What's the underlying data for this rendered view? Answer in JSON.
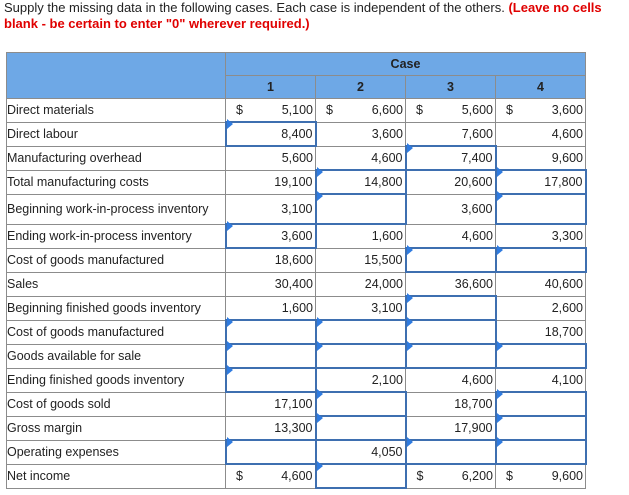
{
  "instructions": {
    "text": "Supply the missing data in the following cases. Each case is independent of the others.",
    "warning": "(Leave no cells blank - be certain to enter \"0\" wherever required.)"
  },
  "table": {
    "group_header": "Case",
    "columns": [
      "1",
      "2",
      "3",
      "4"
    ],
    "rows": [
      {
        "label": "Direct materials",
        "cells": [
          {
            "value": "5,100",
            "dollar": "$",
            "input": false
          },
          {
            "value": "6,600",
            "dollar": "$",
            "input": false
          },
          {
            "value": "5,600",
            "dollar": "$",
            "input": false
          },
          {
            "value": "3,600",
            "dollar": "$",
            "input": false
          }
        ]
      },
      {
        "label": "Direct labour",
        "cells": [
          {
            "value": "8,400",
            "input": true
          },
          {
            "value": "3,600",
            "input": false
          },
          {
            "value": "7,600",
            "input": false
          },
          {
            "value": "4,600",
            "input": false
          }
        ]
      },
      {
        "label": "Manufacturing overhead",
        "cells": [
          {
            "value": "5,600",
            "input": false
          },
          {
            "value": "4,600",
            "input": false
          },
          {
            "value": "7,400",
            "input": true
          },
          {
            "value": "9,600",
            "input": false
          }
        ]
      },
      {
        "label": "Total manufacturing costs",
        "cells": [
          {
            "value": "19,100",
            "input": false
          },
          {
            "value": "14,800",
            "input": true
          },
          {
            "value": "20,600",
            "input": false
          },
          {
            "value": "17,800",
            "input": true
          }
        ]
      },
      {
        "label": "Beginning work-in-process inventory",
        "tall": true,
        "cells": [
          {
            "value": "3,100",
            "input": false
          },
          {
            "value": "",
            "input": true
          },
          {
            "value": "3,600",
            "input": false
          },
          {
            "value": "",
            "input": true
          }
        ]
      },
      {
        "label": "Ending work-in-process inventory",
        "cells": [
          {
            "value": "3,600",
            "input": true
          },
          {
            "value": "1,600",
            "input": false
          },
          {
            "value": "4,600",
            "input": false
          },
          {
            "value": "3,300",
            "input": false
          }
        ]
      },
      {
        "label": "Cost of goods manufactured",
        "cells": [
          {
            "value": "18,600",
            "input": false
          },
          {
            "value": "15,500",
            "input": false
          },
          {
            "value": "",
            "input": true
          },
          {
            "value": "",
            "input": true
          }
        ]
      },
      {
        "label": "Sales",
        "cells": [
          {
            "value": "30,400",
            "input": false
          },
          {
            "value": "24,000",
            "input": false
          },
          {
            "value": "36,600",
            "input": false
          },
          {
            "value": "40,600",
            "input": false
          }
        ]
      },
      {
        "label": "Beginning finished goods inventory",
        "cells": [
          {
            "value": "1,600",
            "input": false
          },
          {
            "value": "3,100",
            "input": false
          },
          {
            "value": "",
            "input": true
          },
          {
            "value": "2,600",
            "input": false
          }
        ]
      },
      {
        "label": "Cost of goods manufactured",
        "cells": [
          {
            "value": "",
            "input": true
          },
          {
            "value": "",
            "input": true
          },
          {
            "value": "",
            "input": true
          },
          {
            "value": "18,700",
            "input": false
          }
        ]
      },
      {
        "label": "Goods available for sale",
        "cells": [
          {
            "value": "",
            "input": true
          },
          {
            "value": "",
            "input": true
          },
          {
            "value": "",
            "input": true
          },
          {
            "value": "",
            "input": true
          }
        ]
      },
      {
        "label": "Ending finished goods inventory",
        "cells": [
          {
            "value": "",
            "input": true
          },
          {
            "value": "2,100",
            "input": false
          },
          {
            "value": "4,600",
            "input": false
          },
          {
            "value": "4,100",
            "input": false
          }
        ]
      },
      {
        "label": "Cost of goods sold",
        "cells": [
          {
            "value": "17,100",
            "input": false
          },
          {
            "value": "",
            "input": true
          },
          {
            "value": "18,700",
            "input": false
          },
          {
            "value": "",
            "input": true
          }
        ]
      },
      {
        "label": "Gross margin",
        "cells": [
          {
            "value": "13,300",
            "input": false
          },
          {
            "value": "",
            "input": true
          },
          {
            "value": "17,900",
            "input": false
          },
          {
            "value": "",
            "input": true
          }
        ]
      },
      {
        "label": "Operating expenses",
        "cells": [
          {
            "value": "",
            "input": true
          },
          {
            "value": "4,050",
            "input": false
          },
          {
            "value": "",
            "input": true
          },
          {
            "value": "",
            "input": true
          }
        ]
      },
      {
        "label": "Net income",
        "cells": [
          {
            "value": "4,600",
            "dollar": "$",
            "input": false
          },
          {
            "value": "",
            "input": true
          },
          {
            "value": "6,200",
            "dollar": "$",
            "input": false
          },
          {
            "value": "9,600",
            "dollar": "$",
            "input": false
          }
        ]
      }
    ]
  }
}
